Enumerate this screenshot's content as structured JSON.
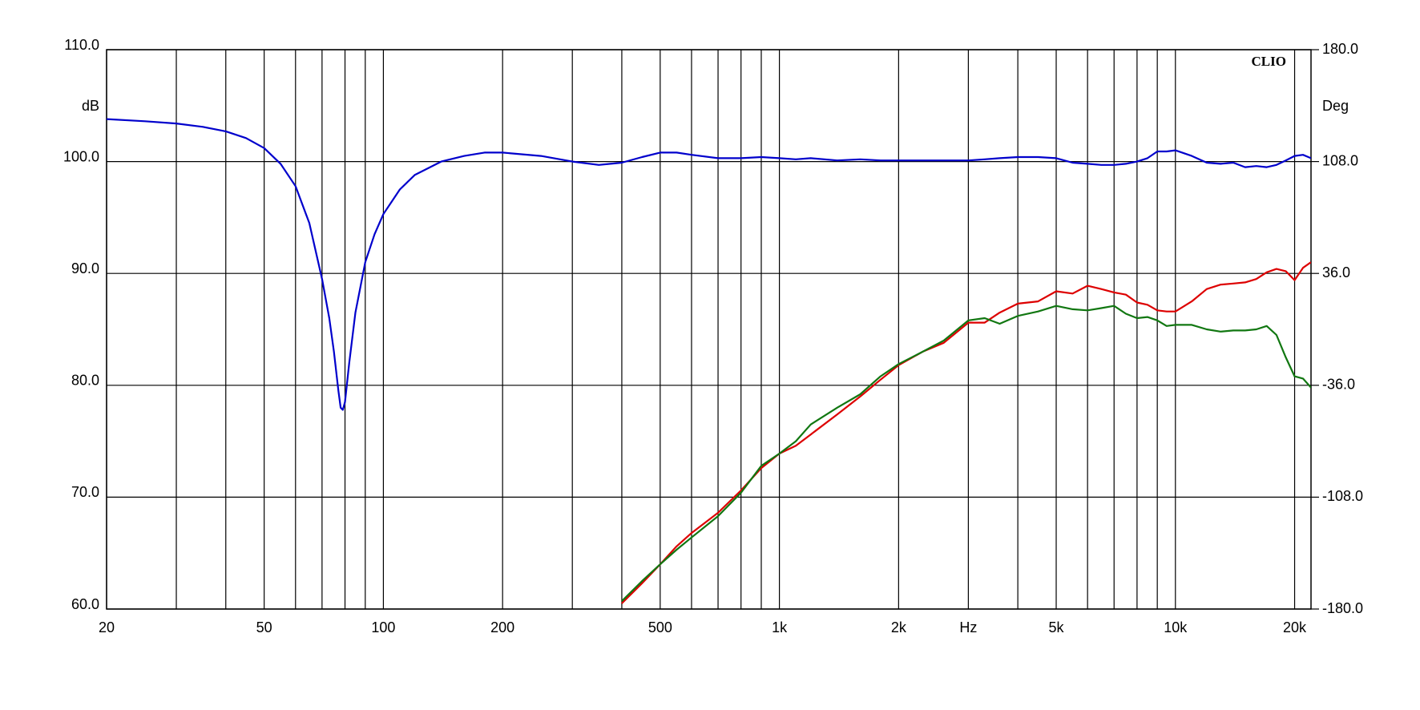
{
  "chart_data": {
    "type": "line",
    "brand": "CLIO",
    "ylabel": "dB",
    "y2label": "Deg",
    "xlog": true,
    "grid": true,
    "x": [
      20,
      25,
      30,
      35,
      40,
      45,
      50,
      55,
      60,
      65,
      70,
      73,
      75,
      77,
      78,
      79,
      80,
      82,
      85,
      90,
      95,
      100,
      110,
      120,
      140,
      160,
      180,
      200,
      250,
      300,
      350,
      400,
      450,
      500,
      550,
      600,
      700,
      800,
      900,
      1000,
      1100,
      1200,
      1400,
      1600,
      1800,
      2000,
      2300,
      2600,
      3000,
      3300,
      3600,
      4000,
      4500,
      5000,
      5500,
      6000,
      6500,
      7000,
      7500,
      8000,
      8500,
      9000,
      9500,
      10000,
      11000,
      12000,
      13000,
      14000,
      15000,
      16000,
      17000,
      18000,
      19000,
      20000,
      21000,
      22000
    ],
    "series": [
      {
        "color": "#0000cc",
        "values": [
          103.8,
          103.6,
          103.4,
          103.1,
          102.7,
          102.1,
          101.2,
          99.8,
          97.8,
          94.5,
          89.5,
          86,
          83,
          79.5,
          78,
          77.8,
          78.5,
          82,
          86.5,
          91,
          93.5,
          95.3,
          97.5,
          98.8,
          100,
          100.5,
          100.8,
          100.8,
          100.5,
          100,
          99.7,
          99.9,
          100.4,
          100.8,
          100.8,
          100.6,
          100.3,
          100.3,
          100.4,
          100.3,
          100.2,
          100.3,
          100.1,
          100.2,
          100.1,
          100.1,
          100.1,
          100.1,
          100.1,
          100.2,
          100.3,
          100.4,
          100.4,
          100.3,
          99.9,
          99.8,
          99.7,
          99.7,
          99.8,
          100,
          100.3,
          100.9,
          100.9,
          101,
          100.5,
          99.9,
          99.8,
          99.9,
          99.5,
          99.6,
          99.5,
          99.7,
          100.1,
          100.5,
          100.6,
          100.3
        ]
      },
      {
        "color": "#dd0000",
        "values": [
          null,
          null,
          null,
          null,
          null,
          null,
          null,
          null,
          null,
          null,
          null,
          null,
          null,
          null,
          null,
          null,
          null,
          null,
          null,
          null,
          null,
          null,
          null,
          null,
          null,
          null,
          null,
          null,
          null,
          null,
          null,
          60.5,
          62.3,
          64,
          65.6,
          66.8,
          68.6,
          70.6,
          72.6,
          73.9,
          74.6,
          75.6,
          77.4,
          79,
          80.5,
          81.8,
          83,
          83.8,
          85.6,
          85.6,
          86.5,
          87.3,
          87.5,
          88.4,
          88.2,
          88.9,
          88.6,
          88.3,
          88.1,
          87.4,
          87.2,
          86.7,
          86.6,
          86.6,
          87.5,
          88.6,
          89,
          89.1,
          89.2,
          89.5,
          90.1,
          90.4,
          90.2,
          89.4,
          90.5,
          91
        ]
      },
      {
        "color": "#117711",
        "values": [
          null,
          null,
          null,
          null,
          null,
          null,
          null,
          null,
          null,
          null,
          null,
          null,
          null,
          null,
          null,
          null,
          null,
          null,
          null,
          null,
          null,
          null,
          null,
          null,
          null,
          null,
          null,
          null,
          null,
          null,
          null,
          60.7,
          62.5,
          64,
          65.3,
          66.4,
          68.3,
          70.4,
          72.8,
          73.9,
          75,
          76.5,
          78,
          79.2,
          80.8,
          81.9,
          83,
          84,
          85.8,
          86,
          85.5,
          86.2,
          86.6,
          87.1,
          86.8,
          86.7,
          86.9,
          87.1,
          86.4,
          86,
          86.1,
          85.8,
          85.3,
          85.4,
          85.4,
          85,
          84.8,
          84.9,
          84.9,
          85,
          85.3,
          84.5,
          82.5,
          80.8,
          80.6,
          79.8
        ]
      }
    ],
    "xlim": [
      20,
      22000
    ],
    "xticks": [
      20,
      {
        "value": 30,
        "label": null
      },
      {
        "value": 40,
        "label": null
      },
      50,
      {
        "value": 60,
        "label": null
      },
      {
        "value": 70,
        "label": null
      },
      {
        "value": 80,
        "label": null
      },
      {
        "value": 90,
        "label": null
      },
      100,
      200,
      {
        "value": 300,
        "label": null
      },
      {
        "value": 400,
        "label": null
      },
      500,
      {
        "value": 600,
        "label": null
      },
      {
        "value": 700,
        "label": null
      },
      {
        "value": 800,
        "label": null
      },
      {
        "value": 900,
        "label": null
      },
      {
        "value": 1000,
        "label": "1k"
      },
      {
        "value": 2000,
        "label": "2k"
      },
      {
        "value": 3000,
        "label": "Hz"
      },
      {
        "value": 4000,
        "label": null
      },
      {
        "value": 5000,
        "label": "5k"
      },
      {
        "value": 6000,
        "label": null
      },
      {
        "value": 7000,
        "label": null
      },
      {
        "value": 8000,
        "label": null
      },
      {
        "value": 9000,
        "label": null
      },
      {
        "value": 10000,
        "label": "10k"
      },
      {
        "value": 20000,
        "label": "20k"
      }
    ],
    "ylim": [
      60,
      110
    ],
    "yticks": [
      {
        "value": 60,
        "label": "60.0"
      },
      {
        "value": 70,
        "label": "70.0"
      },
      {
        "value": 80,
        "label": "80.0"
      },
      {
        "value": 90,
        "label": "90.0"
      },
      {
        "value": 100,
        "label": "100.0"
      },
      {
        "value": 110,
        "label": "110.0"
      }
    ],
    "y2lim": [
      -180,
      180
    ],
    "y2ticks": [
      {
        "value": -180,
        "label": "-180.0"
      },
      {
        "value": -108,
        "label": "-108.0"
      },
      {
        "value": -36,
        "label": "-36.0"
      },
      {
        "value": 36,
        "label": "36.0"
      },
      {
        "value": 108,
        "label": "108.0"
      },
      {
        "value": 180,
        "label": "180.0"
      }
    ]
  }
}
